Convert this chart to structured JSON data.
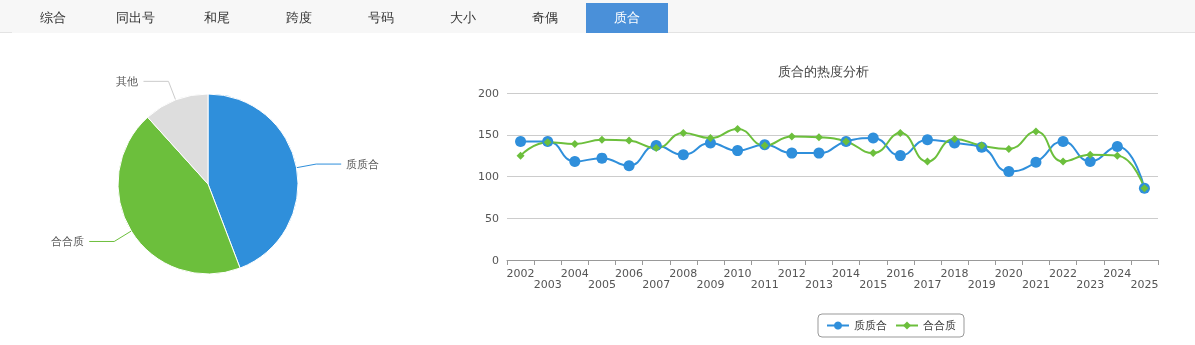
{
  "chart_data": [
    {
      "type": "other",
      "categories": [
        "综合",
        "同出号",
        "和尾",
        "跨度",
        "号码",
        "大小",
        "奇偶",
        "质合"
      ],
      "colors": [
        "#f7f7f7",
        "#f7f7f7",
        "#f7f7f7",
        "#f7f7f7",
        "#f7f7f7",
        "#f7f7f7",
        "#f7f7f7",
        "#4a90d9"
      ]
    },
    {
      "type": "pie",
      "categories": [
        "质质合",
        "合合质",
        "其他"
      ],
      "values": [
        44.2,
        44.1,
        11.7
      ],
      "colors": [
        "#2f8fdb",
        "#6cbf3c",
        "#dddddd"
      ]
    },
    {
      "type": "line",
      "title": "质合的热度分析",
      "categories": [
        "2002",
        "2003",
        "2004",
        "2005",
        "2006",
        "2007",
        "2008",
        "2009",
        "2010",
        "2011",
        "2012",
        "2013",
        "2014",
        "2015",
        "2016",
        "2017",
        "2018",
        "2019",
        "2020",
        "2021",
        "2022",
        "2023",
        "2024",
        "2025"
      ],
      "series": [
        {
          "name": "质质合",
          "color": "#2f8fdb",
          "marker": "circle",
          "values": [
            142,
            142,
            118,
            122,
            113,
            137,
            126,
            140,
            131,
            138,
            128,
            128,
            142,
            146,
            125,
            144,
            140,
            135,
            106,
            117,
            142,
            118,
            136,
            86
          ]
        },
        {
          "name": "合合质",
          "color": "#6cbf3c",
          "marker": "diamond",
          "values": [
            125,
            141,
            139,
            144,
            143,
            134,
            152,
            146,
            157,
            137,
            148,
            147,
            142,
            128,
            152,
            118,
            145,
            137,
            133,
            154,
            118,
            126,
            125,
            86
          ]
        }
      ],
      "ylim": [
        0,
        200
      ],
      "yticks": [
        0,
        50,
        100,
        150,
        200
      ],
      "grid": "y",
      "legend": "bottom"
    }
  ]
}
